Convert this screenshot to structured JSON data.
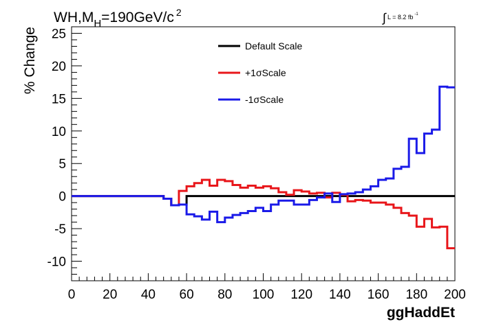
{
  "header": {
    "title_main": "WH,M",
    "title_sub": "H",
    "title_rest": "=190GeV/c",
    "title_sup": "2",
    "lumi_label": "L = 8.2 fb",
    "lumi_sup": "-1"
  },
  "colors": {
    "default": "#000000",
    "plus": "#e8161a",
    "minus": "#1a1ae8"
  },
  "chart_data": {
    "type": "line",
    "xlabel": "ggHaddEt",
    "ylabel": "% Change",
    "xlim": [
      0,
      200
    ],
    "ylim": [
      -13,
      26
    ],
    "xticks": [
      0,
      20,
      40,
      60,
      80,
      100,
      120,
      140,
      160,
      180,
      200
    ],
    "yticks": [
      -10,
      -5,
      0,
      5,
      10,
      15,
      20,
      25
    ],
    "legend_position": "top-center",
    "bin_edges": [
      0,
      4,
      8,
      12,
      16,
      20,
      24,
      28,
      32,
      36,
      40,
      44,
      48,
      52,
      56,
      60,
      64,
      68,
      72,
      76,
      80,
      84,
      88,
      92,
      96,
      100,
      104,
      108,
      112,
      116,
      120,
      124,
      128,
      132,
      136,
      140,
      144,
      148,
      152,
      156,
      160,
      164,
      168,
      172,
      176,
      180,
      184,
      188,
      192,
      196,
      200
    ],
    "series": [
      {
        "name": "Default Scale",
        "color": "#000000",
        "values": [
          0,
          0,
          0,
          0,
          0,
          0,
          0,
          0,
          0,
          0,
          0,
          0,
          -0.4,
          -1.4,
          -1.3,
          0,
          0,
          0,
          0,
          0,
          0,
          0,
          0,
          0,
          0,
          0,
          0,
          0,
          0,
          0,
          0,
          0,
          0,
          0,
          0,
          0,
          0,
          0,
          0,
          0,
          0,
          0,
          0,
          0,
          0,
          0,
          0,
          0,
          0,
          0
        ]
      },
      {
        "name": "+1σScale",
        "color": "#e8161a",
        "values": [
          0,
          0,
          0,
          0,
          0,
          0,
          0,
          0,
          0,
          0,
          0,
          0,
          -0.4,
          -1.4,
          0.8,
          1.5,
          2.0,
          2.5,
          1.6,
          2.5,
          2.3,
          1.7,
          1.3,
          1.6,
          1.3,
          1.5,
          1.2,
          0.6,
          0.2,
          0.9,
          0.7,
          0.4,
          0.5,
          -0.2,
          0.5,
          0.2,
          -0.8,
          -0.6,
          -0.7,
          -1.0,
          -1.0,
          -1.3,
          -1.8,
          -2.6,
          -3.0,
          -4.7,
          -3.5,
          -4.8,
          -4.7,
          -8.0
        ]
      },
      {
        "name": "-1σScale",
        "color": "#1a1ae8",
        "values": [
          0,
          0,
          0,
          0,
          0,
          0,
          0,
          0,
          0,
          0,
          0,
          0,
          -0.4,
          -1.4,
          -1.3,
          -2.8,
          -3.1,
          -3.6,
          -2.4,
          -4.0,
          -3.3,
          -2.9,
          -2.6,
          -2.3,
          -1.8,
          -2.3,
          -1.3,
          -0.7,
          -0.7,
          -1.3,
          -1.3,
          -0.6,
          -0.2,
          0.4,
          -0.9,
          0.3,
          0.4,
          0.6,
          1.0,
          1.5,
          2.5,
          2.7,
          4.2,
          4.5,
          8.8,
          6.6,
          9.6,
          10.2,
          16.8,
          16.7
        ]
      }
    ]
  }
}
